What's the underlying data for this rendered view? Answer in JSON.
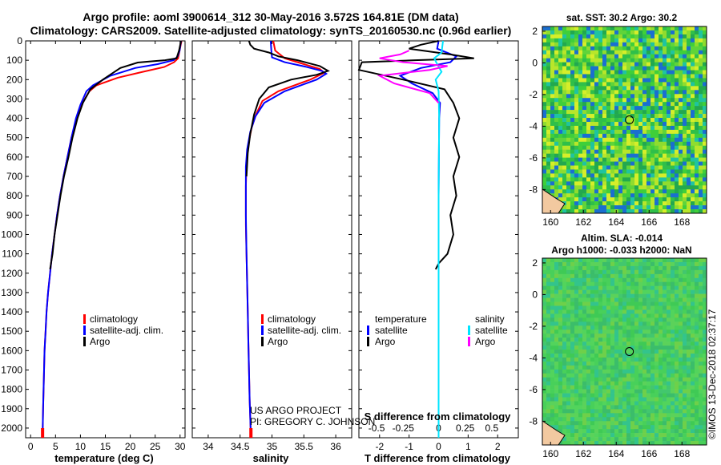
{
  "title_line1": "Argo profile: aoml 3900614_312 30-May-2016 3.572S 164.81E (DM data)",
  "title_line2": "Climatology: CARS2009. Satellite-adjusted climatology: synTS_20160530.nc (0.96d earlier)",
  "credit_line1": "US ARGO PROJECT",
  "credit_line2": "PI: GREGORY C. JOHNSON",
  "watermark": "©IMOS 13-Dec-2018 02:37:17",
  "sst_title": "sat. SST: 30.2 Argo: 30.2",
  "sla_title_line1": "Altim. SLA: -0.014",
  "sla_title_line2": "Argo h1000: -0.033 h2000: NaN",
  "colors": {
    "climatology": "#ff0000",
    "satellite": "#0000ff",
    "argo": "#000000",
    "sal_satellite": "#00e5ff",
    "sal_argo": "#ff00ff"
  },
  "chart_data": [
    {
      "type": "line",
      "xlabel": "temperature (deg C)",
      "ylabel": "",
      "xlim": [
        -1,
        31
      ],
      "ylim": [
        2050,
        0
      ],
      "xticks": [
        0,
        5,
        10,
        15,
        20,
        25,
        30
      ],
      "yticks": [
        0,
        100,
        200,
        300,
        400,
        500,
        600,
        700,
        800,
        900,
        1000,
        1100,
        1200,
        1300,
        1400,
        1500,
        1600,
        1700,
        1800,
        1900,
        2000
      ],
      "legend": [
        "climatology",
        "satellite-adj. clim.",
        "Argo"
      ],
      "series": [
        {
          "name": "climatology",
          "color": "#ff0000",
          "x": [
            30.3,
            29.9,
            29.6,
            28.8,
            26.8,
            22.5,
            17.5,
            13.2,
            11.8,
            10.2,
            9.2,
            8.2,
            7.4,
            6.6,
            5.9,
            5.3,
            4.8,
            4.3,
            3.9,
            3.5,
            3.2,
            3.0,
            2.8,
            2.6,
            2.5,
            2.4
          ],
          "y": [
            0,
            50,
            90,
            110,
            135,
            160,
            190,
            230,
            260,
            330,
            400,
            500,
            600,
            700,
            800,
            900,
            1000,
            1100,
            1200,
            1300,
            1400,
            1500,
            1600,
            1800,
            1900,
            2050
          ]
        },
        {
          "name": "satellite-adj. clim.",
          "color": "#0000ff",
          "x": [
            30.2,
            29.9,
            29.5,
            28.7,
            25.5,
            21.0,
            16.0,
            12.5,
            11.2,
            10.0,
            9.1,
            8.2,
            7.4,
            6.6,
            5.9,
            5.3,
            4.8,
            4.3,
            3.9,
            3.5,
            3.2,
            3.0,
            2.8,
            2.6,
            2.5,
            2.4
          ],
          "y": [
            0,
            50,
            80,
            100,
            120,
            140,
            180,
            230,
            260,
            330,
            400,
            500,
            600,
            700,
            800,
            900,
            1000,
            1100,
            1200,
            1300,
            1400,
            1500,
            1600,
            1800,
            1900,
            2050
          ]
        },
        {
          "name": "Argo",
          "color": "#000000",
          "x": [
            30.2,
            29.8,
            29.3,
            27.0,
            24.5,
            21.5,
            18.0,
            14.5,
            12.0,
            10.5,
            9.4,
            8.4,
            7.6,
            6.7,
            6.0,
            5.4,
            4.8,
            4.4,
            3.9
          ],
          "y": [
            0,
            50,
            90,
            100,
            105,
            112,
            140,
            200,
            250,
            320,
            400,
            500,
            600,
            700,
            800,
            900,
            1000,
            1100,
            1180
          ]
        }
      ]
    },
    {
      "type": "line",
      "xlabel": "salinity",
      "ylabel": "",
      "xlim": [
        33.75,
        36.25
      ],
      "ylim": [
        2050,
        0
      ],
      "xticks": [
        34,
        34.5,
        35,
        35.5,
        36
      ],
      "legend": [
        "climatology",
        "satellite-adj. clim.",
        "Argo"
      ],
      "series": [
        {
          "name": "climatology",
          "color": "#ff0000",
          "x": [
            35.02,
            35.05,
            35.2,
            35.5,
            35.75,
            35.82,
            35.6,
            35.1,
            34.85,
            34.75,
            34.68,
            34.62,
            34.6,
            34.59,
            34.59,
            34.59,
            34.6,
            34.61,
            34.62,
            34.63,
            34.64,
            34.65,
            34.66,
            34.67
          ],
          "y": [
            0,
            50,
            90,
            120,
            145,
            165,
            200,
            260,
            310,
            380,
            450,
            550,
            650,
            750,
            850,
            950,
            1100,
            1250,
            1400,
            1550,
            1700,
            1850,
            1950,
            2050
          ]
        },
        {
          "name": "satellite-adj. clim.",
          "color": "#0000ff",
          "x": [
            34.98,
            34.99,
            35.0,
            35.2,
            35.55,
            35.78,
            35.85,
            35.7,
            35.2,
            34.88,
            34.74,
            34.66,
            34.61,
            34.59,
            34.59,
            34.59,
            34.6,
            34.61,
            34.62,
            34.63,
            34.64,
            34.65,
            34.66,
            34.67
          ],
          "y": [
            0,
            50,
            85,
            110,
            135,
            155,
            170,
            200,
            260,
            320,
            390,
            470,
            560,
            650,
            750,
            900,
            1100,
            1250,
            1400,
            1550,
            1700,
            1850,
            1950,
            2050
          ]
        },
        {
          "name": "Argo",
          "color": "#000000",
          "x": [
            34.64,
            34.66,
            34.72,
            34.95,
            35.1,
            35.4,
            35.75,
            35.88,
            35.7,
            35.3,
            34.95,
            34.8,
            34.72,
            34.66,
            34.62,
            34.6
          ],
          "y": [
            0,
            20,
            40,
            60,
            80,
            100,
            130,
            155,
            175,
            200,
            240,
            300,
            380,
            480,
            580,
            700
          ]
        }
      ]
    },
    {
      "type": "line",
      "xlabel": "T difference from climatology",
      "xlabel_top": "S difference from climatology",
      "ylabel": "",
      "xlim": [
        -2.7,
        2.7
      ],
      "ylim": [
        2050,
        0
      ],
      "xticks_T": [
        -2,
        -1,
        0,
        1,
        2
      ],
      "xticks_S": [
        "-0.5",
        "-0.25",
        "0",
        "0.25",
        "0.5"
      ],
      "legend_left": {
        "heading": "temperature",
        "items": [
          "satellite",
          "Argo"
        ]
      },
      "legend_right": {
        "heading": "salinity",
        "items": [
          "satellite",
          "Argo"
        ]
      },
      "series": [
        {
          "name": "T satellite",
          "color": "#0000ff",
          "x": [
            0.0,
            -0.05,
            0.6,
            0.4,
            -0.6,
            -1.3,
            -0.9,
            -0.2,
            0.05,
            0.02,
            0.0,
            0.0
          ],
          "y": [
            0,
            40,
            80,
            110,
            140,
            180,
            220,
            270,
            320,
            400,
            800,
            2050
          ]
        },
        {
          "name": "T Argo",
          "color": "#000000",
          "x": [
            0.0,
            -0.6,
            -1.0,
            0.4,
            1.2,
            -0.8,
            -2.6,
            -2.7,
            -1.2,
            0.2,
            0.5,
            0.7,
            0.5,
            0.7,
            0.5,
            0.6,
            0.4,
            0.5,
            0.3,
            0.0,
            -0.1
          ],
          "y": [
            0,
            20,
            40,
            70,
            90,
            100,
            110,
            150,
            200,
            250,
            320,
            400,
            500,
            600,
            700,
            800,
            900,
            1000,
            1100,
            1150,
            1180
          ]
        },
        {
          "name": "S satellite",
          "color": "#00e5ff",
          "x": [
            0.15,
            0.1,
            -0.15,
            -0.05,
            0.1,
            -0.1,
            0.0,
            0.02,
            0.0,
            0.0
          ],
          "y": [
            0,
            60,
            90,
            120,
            160,
            200,
            260,
            400,
            800,
            2050
          ]
        },
        {
          "name": "S Argo",
          "color": "#ff00ff",
          "x": [
            -1.0,
            -1.3,
            -2.0,
            -1.2,
            0.3,
            -0.3,
            -2.0,
            -1.5,
            -0.3,
            0.0
          ],
          "y": [
            50,
            70,
            90,
            110,
            130,
            150,
            180,
            220,
            270,
            320
          ]
        }
      ]
    },
    {
      "type": "heatmap",
      "title": "sat. SST: 30.2 Argo: 30.2",
      "xlim": [
        159.5,
        169.5
      ],
      "ylim": [
        -9.5,
        2.3
      ],
      "xticks": [
        160,
        162,
        164,
        166,
        168
      ],
      "yticks": [
        -8,
        -6,
        -4,
        -2,
        0,
        2
      ],
      "marker": {
        "x": 164.8,
        "y": -3.6
      }
    },
    {
      "type": "heatmap",
      "title": "Altim. SLA: -0.014",
      "xlim": [
        159.5,
        169.5
      ],
      "ylim": [
        -9.5,
        2.3
      ],
      "xticks": [
        160,
        162,
        164,
        166,
        168
      ],
      "yticks": [
        -8,
        -6,
        -4,
        -2,
        0,
        2
      ],
      "marker": {
        "x": 164.8,
        "y": -3.6
      }
    }
  ]
}
